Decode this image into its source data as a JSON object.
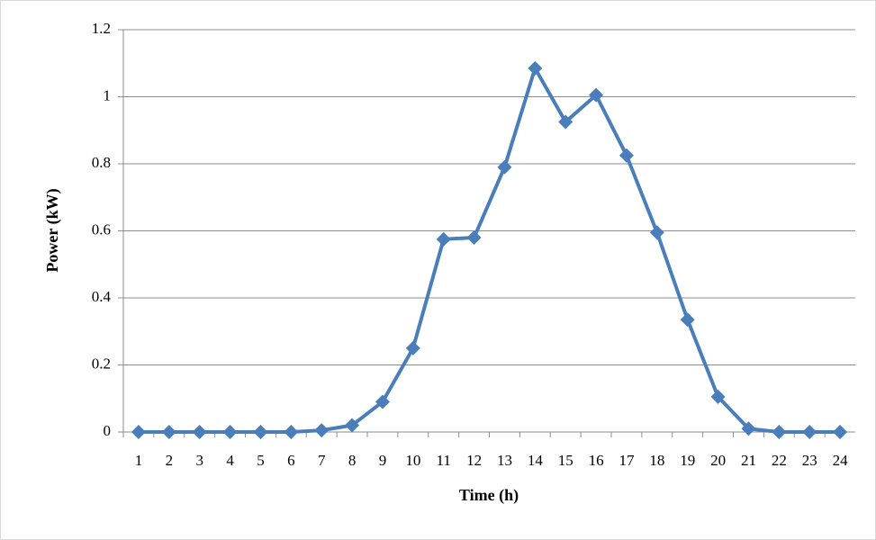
{
  "chart_data": {
    "type": "line",
    "x_label": "Time (h)",
    "y_label": "Power (kW)",
    "categories": [
      "1",
      "2",
      "3",
      "4",
      "5",
      "6",
      "7",
      "8",
      "9",
      "10",
      "11",
      "12",
      "13",
      "14",
      "15",
      "16",
      "17",
      "18",
      "19",
      "20",
      "21",
      "22",
      "23",
      "24"
    ],
    "series": [
      {
        "color": "#4a7ebb",
        "values": [
          0,
          0,
          0,
          0,
          0,
          0,
          0.005,
          0.02,
          0.09,
          0.25,
          0.575,
          0.58,
          0.79,
          1.085,
          0.925,
          1.005,
          0.825,
          0.595,
          0.335,
          0.105,
          0.01,
          0,
          0,
          0
        ]
      }
    ],
    "ylim": [
      0,
      1.2
    ],
    "yticks": [
      0,
      0.2,
      0.4,
      0.6,
      0.8,
      1,
      1.2
    ],
    "grid": true
  }
}
